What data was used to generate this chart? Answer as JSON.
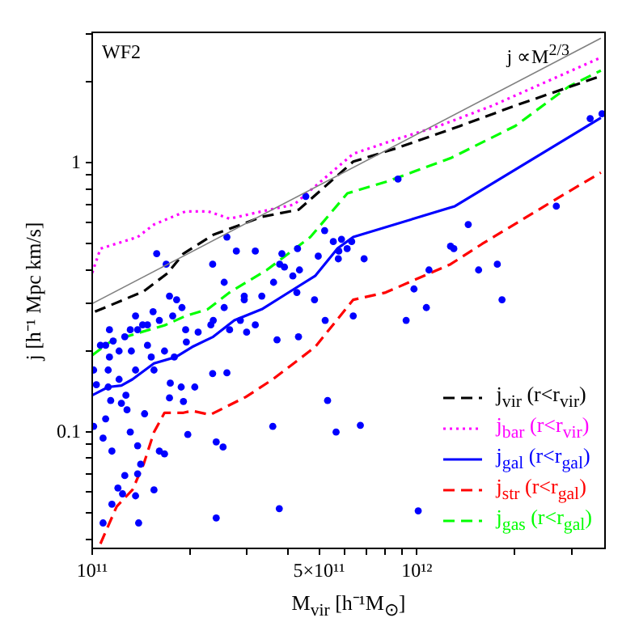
{
  "chart_data": {
    "type": "scatter",
    "xlabel": "M$_{vir}$  [h⁻¹M$_{⊙}$]",
    "ylabel": "j [h⁻¹ Mpc km/s]",
    "log": "xy",
    "grid": false,
    "legend": "bottom right",
    "xlim": [
      100000000000.0,
      3800000000000.0
    ],
    "ylim": [
      0.037,
      3.05
    ],
    "xticks": [
      {
        "value": 100000000000.0,
        "label": "10¹¹"
      },
      {
        "value": 200000000000.0,
        "label": null
      },
      {
        "value": 300000000000.0,
        "label": null
      },
      {
        "value": 400000000000.0,
        "label": null
      },
      {
        "value": 500000000000.0,
        "label": "5×10¹¹"
      },
      {
        "value": 600000000000.0,
        "label": null
      },
      {
        "value": 700000000000.0,
        "label": null
      },
      {
        "value": 800000000000.0,
        "label": null
      },
      {
        "value": 900000000000.0,
        "label": null
      },
      {
        "value": 1000000000000.0,
        "label": "10¹²"
      },
      {
        "value": 2000000000000.0,
        "label": null
      },
      {
        "value": 3000000000000.0,
        "label": null
      }
    ],
    "yticks": [
      {
        "value": 0.04,
        "label": null
      },
      {
        "value": 0.05,
        "label": null
      },
      {
        "value": 0.06,
        "label": null
      },
      {
        "value": 0.07,
        "label": null
      },
      {
        "value": 0.08,
        "label": null
      },
      {
        "value": 0.09,
        "label": null
      },
      0.1,
      {
        "value": 0.2,
        "label": null
      },
      {
        "value": 0.3,
        "label": null
      },
      {
        "value": 0.4,
        "label": null
      },
      {
        "value": 0.5,
        "label": null
      },
      {
        "value": 0.6,
        "label": null
      },
      {
        "value": 0.7,
        "label": null
      },
      {
        "value": 0.8,
        "label": null
      },
      {
        "value": 0.9,
        "label": null
      },
      1,
      {
        "value": 2,
        "label": null
      },
      {
        "value": 3,
        "label": null
      }
    ],
    "annotations": [
      "WF2",
      "j ∝M$^{2/3}$"
    ],
    "series": [
      {
        "type": "line",
        "color": "#808080",
        "line_style": "solid",
        "marker": "none",
        "x": [
          100000000000.0,
          3690000000000.0
        ],
        "values": [
          0.3,
          2.9
        ]
      },
      {
        "color": "#0000ff",
        "marker": "circle",
        "x": [
          158000000000.0,
          169000000000.0,
          173000000000.0,
          235000000000.0,
          255000000000.0,
          260000000000.0,
          278000000000.0,
          294000000000.0,
          318000000000.0,
          333000000000.0,
          362000000000.0,
          378000000000.0,
          384000000000.0,
          391000000000.0,
          415000000000.0,
          427000000000.0,
          435000000000.0,
          429000000000.0,
          455000000000.0,
          497000000000.0,
          520000000000.0,
          553000000000.0,
          575000000000.0,
          586000000000.0,
          573000000000.0,
          610000000000.0,
          630000000000.0,
          688000000000.0,
          875000000000.0,
          980000000000.0,
          1090000000000.0,
          1270000000000.0,
          1300000000000.0,
          1440000000000.0,
          1550000000000.0,
          1770000000000.0,
          2690000000000.0,
          3420000000000.0,
          3720000000000.0,
          294000000000.0,
          182000000000.0,
          189000000000.0,
          177000000000.0,
          136000000000.0,
          154000000000.0,
          161000000000.0,
          143000000000.0,
          138000000000.0,
          148000000000.0,
          131000000000.0,
          113000000000.0,
          126000000000.0,
          116000000000.0,
          106000000000.0,
          110000000000.0,
          121000000000.0,
          113000000000.0,
          132000000000.0,
          148000000000.0,
          152000000000.0,
          167000000000.0,
          179000000000.0,
          195000000000.0,
          212000000000.0,
          232000000000.0,
          265000000000.0,
          286000000000.0,
          318000000000.0,
          299000000000.0,
          194000000000.0,
          236000000000.0,
          255000000000.0,
          432000000000.0,
          484000000000.0,
          522000000000.0,
          637000000000.0,
          371000000000.0,
          101000000000.0,
          112000000000.0,
          112000000000.0,
          103000000000.0,
          121000000000.0,
          136000000000.0,
          155000000000.0,
          127000000000.0,
          174000000000.0,
          188000000000.0,
          207000000000.0,
          235000000000.0,
          260000000000.0,
          173000000000.0,
          191000000000.0,
          114000000000.0,
          123000000000.0,
          145000000000.0,
          128000000000.0,
          101000000000.0,
          110000000000.0,
          108000000000.0,
          131000000000.0,
          138000000000.0,
          197000000000.0,
          241000000000.0,
          253000000000.0,
          161000000000.0,
          167000000000.0,
          115000000000.0,
          141000000000.0,
          138000000000.0,
          126000000000.0,
          120000000000.0,
          124000000000.0,
          155000000000.0,
          136000000000.0,
          115000000000.0,
          108000000000.0,
          139000000000.0,
          241000000000.0,
          377000000000.0,
          531000000000.0,
          564000000000.0,
          670000000000.0,
          360000000000.0,
          927000000000.0,
          1070000000000.0,
          1830000000000.0,
          1010000000000.0
        ],
        "values": [
          0.46,
          0.42,
          0.32,
          0.42,
          0.36,
          0.53,
          0.47,
          0.32,
          0.47,
          0.32,
          0.36,
          0.42,
          0.46,
          0.41,
          0.38,
          0.33,
          0.4,
          0.48,
          0.75,
          0.45,
          0.56,
          0.51,
          0.47,
          0.52,
          0.44,
          0.48,
          0.51,
          0.44,
          0.87,
          0.34,
          0.4,
          0.49,
          0.48,
          0.59,
          0.4,
          0.42,
          0.69,
          1.46,
          1.52,
          0.31,
          0.31,
          0.29,
          0.27,
          0.27,
          0.28,
          0.26,
          0.25,
          0.24,
          0.25,
          0.24,
          0.24,
          0.226,
          0.218,
          0.21,
          0.21,
          0.2,
          0.19,
          0.2,
          0.21,
          0.19,
          0.2,
          0.19,
          0.216,
          0.235,
          0.25,
          0.24,
          0.26,
          0.25,
          0.235,
          0.24,
          0.26,
          0.29,
          0.226,
          0.31,
          0.26,
          0.27,
          0.22,
          0.17,
          0.17,
          0.147,
          0.15,
          0.157,
          0.17,
          0.17,
          0.137,
          0.152,
          0.147,
          0.147,
          0.165,
          0.166,
          0.134,
          0.13,
          0.131,
          0.128,
          0.117,
          0.121,
          0.105,
          0.112,
          0.095,
          0.1,
          0.089,
          0.098,
          0.092,
          0.088,
          0.085,
          0.083,
          0.085,
          0.076,
          0.07,
          0.069,
          0.062,
          0.059,
          0.061,
          0.058,
          0.054,
          0.046,
          0.046,
          0.048,
          0.052,
          0.131,
          0.1,
          0.106,
          0.105,
          0.26,
          0.29,
          0.31,
          0.051
        ]
      },
      {
        "type": "line",
        "name": "j$_{vir}$ (r<r$_{vir}$)",
        "color": "#000000",
        "line_style": "dashed",
        "marker": "none",
        "x": [
          102000000000.0,
          144000000000.0,
          171000000000.0,
          191000000000.0,
          236000000000.0,
          333000000000.0,
          433000000000.0,
          637000000000.0,
          860000000000.0,
          1360000000000.0,
          2010000000000.0,
          3690000000000.0
        ],
        "values": [
          0.28,
          0.333,
          0.39,
          0.46,
          0.54,
          0.63,
          0.67,
          1.01,
          1.13,
          1.37,
          1.63,
          2.1
        ]
      },
      {
        "type": "line",
        "name": "j$_{bar}$ (r<r$_{vir}$)",
        "color": "#ff00ff",
        "line_style": "dotted",
        "marker": "none",
        "x": [
          100000000000.0,
          106000000000.0,
          138000000000.0,
          155000000000.0,
          194000000000.0,
          228000000000.0,
          265000000000.0,
          333000000000.0,
          419000000000.0,
          470000000000.0,
          637000000000.0,
          860000000000.0,
          1170000000000.0,
          1710000000000.0,
          3690000000000.0
        ],
        "values": [
          0.39,
          0.48,
          0.53,
          0.59,
          0.66,
          0.66,
          0.62,
          0.66,
          0.7,
          0.79,
          1.08,
          1.22,
          1.37,
          1.63,
          2.46
        ]
      },
      {
        "type": "line",
        "name": "j$_{gal}$ (r<r$_{gal}$)",
        "color": "#0000ff",
        "line_style": "solid",
        "marker": "none",
        "x": [
          100000000000.0,
          112000000000.0,
          123000000000.0,
          133000000000.0,
          155000000000.0,
          181000000000.0,
          203000000000.0,
          236000000000.0,
          274000000000.0,
          333000000000.0,
          419000000000.0,
          486000000000.0,
          569000000000.0,
          637000000000.0,
          1310000000000.0,
          3690000000000.0
        ],
        "values": [
          0.137,
          0.147,
          0.149,
          0.157,
          0.18,
          0.19,
          0.207,
          0.226,
          0.26,
          0.286,
          0.34,
          0.38,
          0.48,
          0.53,
          0.69,
          1.47
        ]
      },
      {
        "type": "line",
        "name": "j$_{str}$ (r<r$_{gal}$)",
        "color": "#ff0000",
        "line_style": "dashed",
        "marker": "none",
        "x": [
          106000000000.0,
          119000000000.0,
          133000000000.0,
          144000000000.0,
          155000000000.0,
          167000000000.0,
          191000000000.0,
          203000000000.0,
          231000000000.0,
          297000000000.0,
          360000000000.0,
          486000000000.0,
          637000000000.0,
          802000000000.0,
          1270000000000.0,
          1590000000000.0,
          2620000000000.0,
          3690000000000.0
        ],
        "values": [
          0.0385,
          0.053,
          0.061,
          0.076,
          0.1,
          0.118,
          0.118,
          0.12,
          0.116,
          0.135,
          0.157,
          0.207,
          0.31,
          0.33,
          0.42,
          0.5,
          0.72,
          0.92
        ]
      },
      {
        "type": "line",
        "name": "j$_{gas}$ (r<r$_{gal}$)",
        "color": "#00ff00",
        "line_style": "dashed",
        "marker": "none",
        "x": [
          100000000000.0,
          114000000000.0,
          138000000000.0,
          167000000000.0,
          194000000000.0,
          227000000000.0,
          265000000000.0,
          345000000000.0,
          470000000000.0,
          611000000000.0,
          804000000000.0,
          1270000000000.0,
          2010000000000.0,
          2940000000000.0,
          3690000000000.0
        ],
        "values": [
          0.193,
          0.217,
          0.233,
          0.249,
          0.27,
          0.286,
          0.33,
          0.4,
          0.53,
          0.77,
          0.85,
          1.04,
          1.37,
          1.92,
          2.2
        ]
      }
    ]
  }
}
